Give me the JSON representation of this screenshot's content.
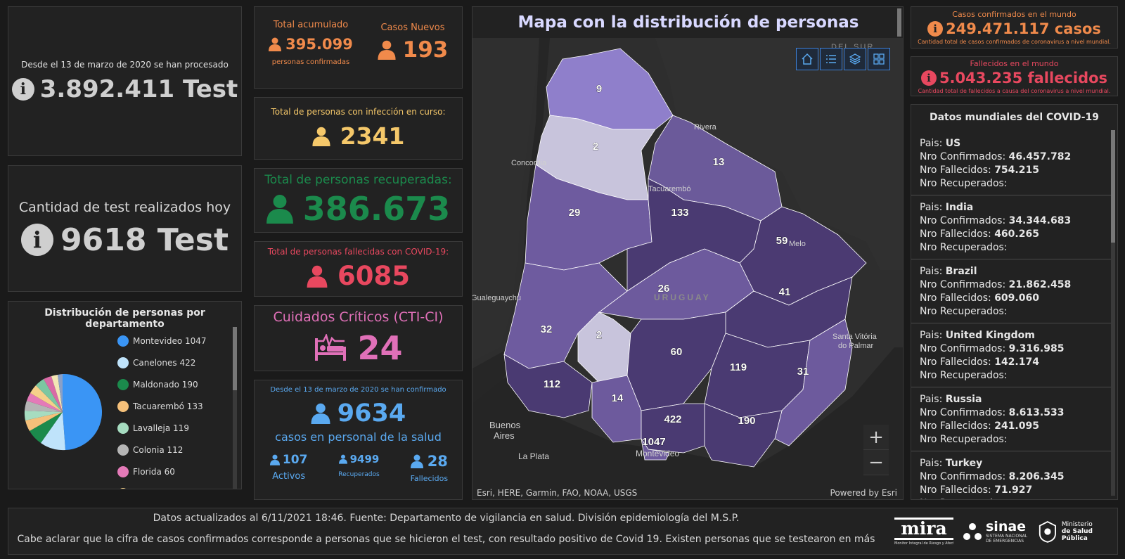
{
  "tests_total": {
    "caption": "Desde el 13 de marzo de 2020 se han procesado",
    "value": "3.892.411 Test"
  },
  "tests_today": {
    "caption": "Cantidad de test realizados hoy",
    "value": "9618 Test"
  },
  "total_acumulado": {
    "title": "Total acumulado",
    "value": "395.099",
    "sub": "personas confirmadas"
  },
  "casos_nuevos": {
    "title": "Casos Nuevos",
    "value": "193"
  },
  "infeccion": {
    "title": "Total de personas con infección en curso:",
    "value": "2341"
  },
  "recuperadas": {
    "title": "Total de personas recuperadas:",
    "value": "386.673"
  },
  "fallecidas": {
    "title": "Total de personas fallecidas con COVID-19:",
    "value": "6085"
  },
  "cti": {
    "title": "Cuidados Críticos (CTI-CI)",
    "value": "24"
  },
  "salud": {
    "caption": "Desde el 13 de marzo de 2020 se han confirmado",
    "value": "9634",
    "sub": "casos en personal de la salud",
    "activos_value": "107",
    "activos_label": "Activos",
    "recuperados_value": "9499",
    "recuperados_label": "Recuperados",
    "fallecidos_value": "28",
    "fallecidos_label": "Fallecidos"
  },
  "distribucion": {
    "title": "Distribución de personas por departamento",
    "items": [
      {
        "label": "Montevideo  1047",
        "color": "#3a95f5"
      },
      {
        "label": "Canelones  422",
        "color": "#bfe3fb"
      },
      {
        "label": "Maldonado  190",
        "color": "#1b8a4c"
      },
      {
        "label": "Tacuarembó  133",
        "color": "#f5c07a"
      },
      {
        "label": "Lavalleja  119",
        "color": "#a6dcc0"
      },
      {
        "label": "Colonia  112",
        "color": "#b5b5b5"
      },
      {
        "label": "Florida  60",
        "color": "#e47ab8"
      }
    ]
  },
  "map": {
    "title": "Mapa con la distribución de personas",
    "attribution": "Esri, HERE, Garmin, FAO, NOAA, USGS",
    "powered": "Powered by Esri",
    "country_label": "URUGUAY",
    "places": {
      "del_sur": "DEL SUR",
      "rivera": "Rivera",
      "concordia": "Concordia",
      "tacuarembo": "Tacuarembó",
      "melo": "Melo",
      "gualeguaychu": "Gualeguaychú",
      "santa_vitoria": "Santa Vitória",
      "do_palmar": "do Palmar",
      "buenos": "Buenos",
      "aires": "Aires",
      "la_plata": "La Plata",
      "montevideo": "Montevideo"
    },
    "zoom_in": "+",
    "zoom_out": "−",
    "departments": {
      "artigas": "9",
      "salto": "2",
      "rivera": "13",
      "tacuarembo": "133",
      "paysandu": "29",
      "cerro_largo": "59",
      "durazno": "26",
      "treinta_y_tres": "41",
      "rio_negro": "32",
      "flores": "2",
      "florida": "60",
      "lavalleja": "119",
      "rocha": "31",
      "colonia": "112",
      "san_jose": "14",
      "canelones": "422",
      "maldonado": "190",
      "montevideo": "1047"
    }
  },
  "world_confirmed": {
    "title": "Casos confirmados en el mundo",
    "value": "249.471.117 casos",
    "sub": "Cantidad total de casos confirmados de coronavirus a nivel mundial."
  },
  "world_deaths": {
    "title": "Fallecidos en el mundo",
    "value": "5.043.235 fallecidos",
    "sub": "Cantidad total de fallecidos a causa del coronavirus a nivel mundial."
  },
  "world_list": {
    "title": "Datos mundiales del COVID-19",
    "pais_label": "Pais:",
    "conf_label": "Nro Confirmados:",
    "fall_label": "Nro Fallecidos:",
    "rec_label": "Nro Recuperados:",
    "countries": [
      {
        "name": "US",
        "confirmed": "46.457.782",
        "deaths": "754.215"
      },
      {
        "name": "India",
        "confirmed": "34.344.683",
        "deaths": "460.265"
      },
      {
        "name": "Brazil",
        "confirmed": "21.862.458",
        "deaths": "609.060"
      },
      {
        "name": "United Kingdom",
        "confirmed": "9.316.985",
        "deaths": "142.174"
      },
      {
        "name": "Russia",
        "confirmed": "8.613.533",
        "deaths": "241.095"
      },
      {
        "name": "Turkey",
        "confirmed": "8.206.345",
        "deaths": "71.927"
      }
    ]
  },
  "footer": {
    "line1": "Datos actualizados al 6/11/2021 18:46. Fuente: Departamento de vigilancia en salud. División epidemiología del M.S.P.",
    "line2": "Cabe aclarar que la cifra de casos confirmados corresponde a personas que se hicieron el test, con resultado positivo de Covid 19. Existen personas que se testearon en más",
    "logo_mira": "mira",
    "logo_mira_sub": "Monitor Integral de Riesgo y Afectaciones",
    "logo_sinae": "sinae",
    "logo_sinae_sub1": "SISTEMA NACIONAL",
    "logo_sinae_sub2": "DE EMERGENCIAS",
    "logo_msp1": "Ministerio",
    "logo_msp2": "de Salud Pública"
  },
  "colors": {
    "orange": "#f08a4b",
    "yellow": "#f5c86a",
    "green": "#1b8a4c",
    "red": "#e8485f",
    "pink": "#e070b8",
    "blue": "#5aa9f0",
    "world_red": "#e8485f",
    "world_orange": "#f08a4b"
  }
}
